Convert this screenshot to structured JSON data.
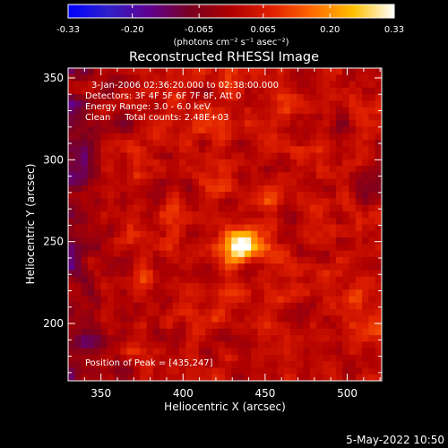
{
  "chart_data": {
    "type": "heatmap",
    "title": "Reconstructed RHESSI Image",
    "xlabel": "Heliocentric X (arcsec)",
    "ylabel": "Heliocentric Y (arcsec)",
    "xlim": [
      330,
      521
    ],
    "ylim": [
      165,
      356
    ],
    "xticks": [
      350,
      400,
      450,
      500
    ],
    "yticks": [
      200,
      250,
      300,
      350
    ],
    "colorbar": {
      "ticks": [
        "-0.33",
        "-0.20",
        "-0.065",
        "0.065",
        "0.20",
        "0.33"
      ],
      "range": [
        -0.33,
        0.33
      ],
      "unit_label": "(photons cm⁻² s⁻¹ asec⁻²)",
      "colors": [
        "#0000ff",
        "#3020c8",
        "#600090",
        "#7a0020",
        "#b00000",
        "#e02000",
        "#ff6a00",
        "#ffc000",
        "#ffffff"
      ]
    },
    "annotations": [
      "3-Jan-2006 02:36:20.000 to 02:38:00.000",
      "Detectors: 3F 4F 5F 6F 7F 8F, Att 0",
      "Energy Range: 3.0 - 6.0 keV",
      "Clean     Total counts: 2.48E+03"
    ],
    "peak_label": "Position of Peak = [435,247]",
    "peak": {
      "x": 435,
      "y": 247,
      "value": 0.33
    },
    "grid": false
  },
  "footer": {
    "date": "5-May-2022 10:50"
  }
}
